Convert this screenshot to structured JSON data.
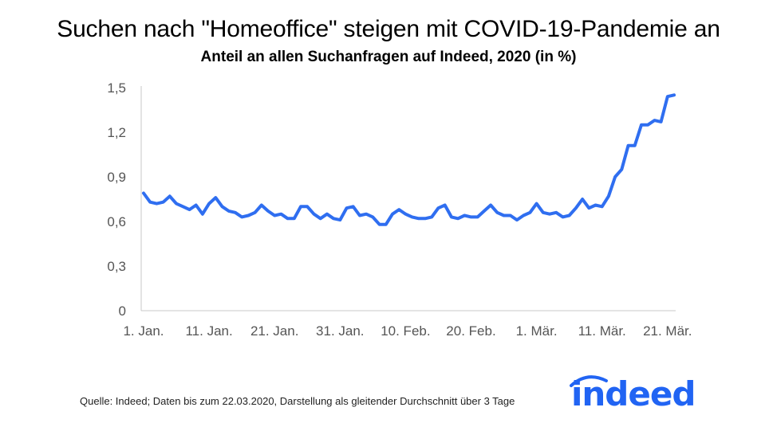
{
  "title": "Suchen nach \"Homeoffice\" steigen mit COVID-19-Pandemie an",
  "subtitle": "Anteil an allen Suchanfragen auf Indeed, 2020 (in %)",
  "source": "Quelle: Indeed; Daten bis zum 22.03.2020, Darstellung als gleitender Durchschnitt über 3 Tage",
  "logo_text": "indeed",
  "colors": {
    "line": "#2f6ef0",
    "axis": "#c8c8c8",
    "logo": "#2164f3"
  },
  "chart_data": {
    "type": "line",
    "title": "Suchen nach \"Homeoffice\" steigen mit COVID-19-Pandemie an",
    "subtitle": "Anteil an allen Suchanfragen auf Indeed, 2020 (in %)",
    "xlabel": "",
    "ylabel": "",
    "x_range_days": [
      1,
      82
    ],
    "ylim": [
      0,
      1.5
    ],
    "y_ticks": [
      0,
      0.3,
      0.6,
      0.9,
      1.2,
      1.5
    ],
    "y_tick_labels": [
      "0",
      "0,3",
      "0,6",
      "0,9",
      "1,2",
      "1,5"
    ],
    "x_tick_labels": [
      "1. Jan.",
      "11. Jan.",
      "21. Jan.",
      "31. Jan.",
      "10. Feb.",
      "20. Feb.",
      "1. Mär.",
      "11. Mär.",
      "21. Mär."
    ],
    "x_tick_days": [
      1,
      11,
      21,
      31,
      41,
      51,
      61,
      71,
      81
    ],
    "grid": false,
    "legend": "none",
    "series": [
      {
        "values": [
          0.79,
          0.73,
          0.72,
          0.73,
          0.77,
          0.72,
          0.7,
          0.68,
          0.71,
          0.65,
          0.72,
          0.76,
          0.7,
          0.67,
          0.66,
          0.63,
          0.64,
          0.66,
          0.71,
          0.67,
          0.64,
          0.65,
          0.62,
          0.62,
          0.7,
          0.7,
          0.65,
          0.62,
          0.65,
          0.62,
          0.61,
          0.69,
          0.7,
          0.64,
          0.65,
          0.63,
          0.58,
          0.58,
          0.65,
          0.68,
          0.65,
          0.63,
          0.62,
          0.62,
          0.63,
          0.69,
          0.71,
          0.63,
          0.62,
          0.64,
          0.63,
          0.63,
          0.67,
          0.71,
          0.66,
          0.64,
          0.64,
          0.61,
          0.64,
          0.66,
          0.72,
          0.66,
          0.65,
          0.66,
          0.63,
          0.64,
          0.69,
          0.75,
          0.69,
          0.71,
          0.7,
          0.77,
          0.9,
          0.95,
          1.11,
          1.11,
          1.25,
          1.25,
          1.28,
          1.27,
          1.44,
          1.45
        ]
      }
    ]
  }
}
